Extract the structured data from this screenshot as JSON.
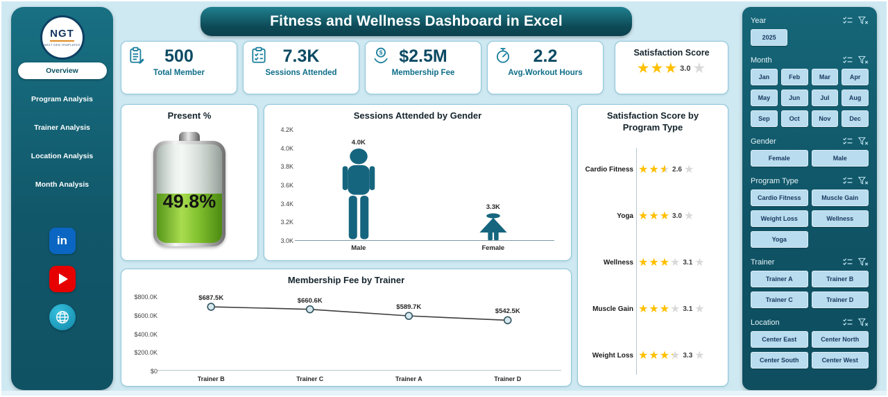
{
  "header": {
    "title": "Fitness and Wellness Dashboard in Excel"
  },
  "sidebar": {
    "logo": {
      "text": "NGT",
      "subtext": "NEXT GEN TEMPLATES"
    },
    "nav": [
      {
        "label": "Overview",
        "active": true
      },
      {
        "label": "Program Analysis",
        "active": false
      },
      {
        "label": "Trainer Analysis",
        "active": false
      },
      {
        "label": "Location Analysis",
        "active": false
      },
      {
        "label": "Month Analysis",
        "active": false
      }
    ],
    "social": [
      {
        "name": "linkedin",
        "glyph": "in"
      },
      {
        "name": "youtube"
      },
      {
        "name": "website"
      }
    ]
  },
  "kpis": [
    {
      "icon": "member-clipboard-icon",
      "value": "500",
      "label": "Total Member"
    },
    {
      "icon": "sessions-checklist-icon",
      "value": "7.3K",
      "label": "Sessions Attended"
    },
    {
      "icon": "membership-fee-icon",
      "value": "$2.5M",
      "label": "Membership Fee"
    },
    {
      "icon": "workout-hours-icon",
      "value": "2.2",
      "label": "Avg.Workout Hours"
    }
  ],
  "satisfaction_card": {
    "title": "Satisfaction Score",
    "value": 3.0,
    "label": "3.0",
    "max": 5
  },
  "chart_data": [
    {
      "id": "present",
      "type": "gauge",
      "title": "Present %",
      "value": 49.8,
      "label": "49.8%"
    },
    {
      "id": "gender",
      "type": "bar",
      "title": "Sessions Attended by Gender",
      "categories": [
        "Male",
        "Female"
      ],
      "values": [
        4.0,
        3.3
      ],
      "labels": [
        "4.0K",
        "3.3K"
      ],
      "y_ticks": [
        "4.2K",
        "4.0K",
        "3.8K",
        "3.6K",
        "3.4K",
        "3.2K",
        "3.0K"
      ],
      "ylim": [
        3.0,
        4.2
      ]
    },
    {
      "id": "fee_by_trainer",
      "type": "line",
      "title": "Membership Fee by Trainer",
      "categories": [
        "Trainer B",
        "Trainer C",
        "Trainer A",
        "Trainer D"
      ],
      "values": [
        687.5,
        660.6,
        589.7,
        542.5
      ],
      "labels": [
        "$687.5K",
        "$660.6K",
        "$589.7K",
        "$542.5K"
      ],
      "y_ticks": [
        "$800.0K",
        "$600.0K",
        "$400.0K",
        "$200.0K",
        "$0"
      ],
      "ylim": [
        0,
        800
      ]
    },
    {
      "id": "satisfaction_by_program",
      "type": "rating",
      "title_lines": [
        "Satisfaction Score by",
        "Program Type"
      ],
      "categories": [
        "Cardio Fitness",
        "Yoga",
        "Wellness",
        "Muscle Gain",
        "Weight Loss"
      ],
      "values": [
        2.6,
        3.0,
        3.1,
        3.1,
        3.3
      ],
      "labels": [
        "2.6",
        "3.0",
        "3.1",
        "3.1",
        "3.3"
      ],
      "max": 5
    }
  ],
  "slicers": [
    {
      "name": "Year",
      "options": [
        "2025"
      ],
      "cols": 3
    },
    {
      "name": "Month",
      "options": [
        "Jan",
        "Feb",
        "Mar",
        "Apr",
        "May",
        "Jun",
        "Jul",
        "Aug",
        "Sep",
        "Oct",
        "Nov",
        "Dec"
      ],
      "cols": 4
    },
    {
      "name": "Gender",
      "options": [
        "Female",
        "Male"
      ],
      "cols": 2
    },
    {
      "name": "Program Type",
      "options": [
        "Cardio Fitness",
        "Muscle Gain",
        "Weight Loss",
        "Wellness",
        "Yoga"
      ],
      "cols": 2
    },
    {
      "name": "Trainer",
      "options": [
        "Trainer A",
        "Trainer B",
        "Trainer C",
        "Trainer D"
      ],
      "cols": 2
    },
    {
      "name": "Location",
      "options": [
        "Center East",
        "Center North",
        "Center South",
        "Center West"
      ],
      "cols": 2
    }
  ],
  "colors": {
    "panel_teal": "#11576a",
    "accent_teal": "#1d7f9e",
    "star_gold": "#FFC000",
    "star_gray": "#d9d9d9",
    "slicer_button_bg": "#b9dcee",
    "slicer_button_text": "#17385f",
    "figure_teal": "#16657f",
    "battery_green": "#76b82a"
  }
}
